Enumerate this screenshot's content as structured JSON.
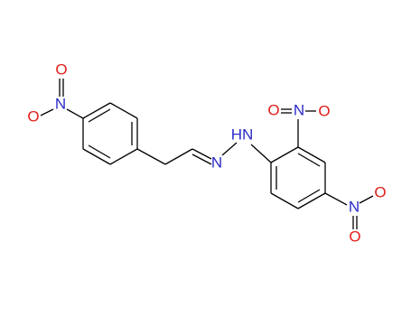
{
  "molecule": {
    "labels": [
      "O",
      "N",
      "O",
      "N",
      "HN",
      "O",
      "N",
      "O",
      "N",
      "O",
      "O"
    ]
  }
}
